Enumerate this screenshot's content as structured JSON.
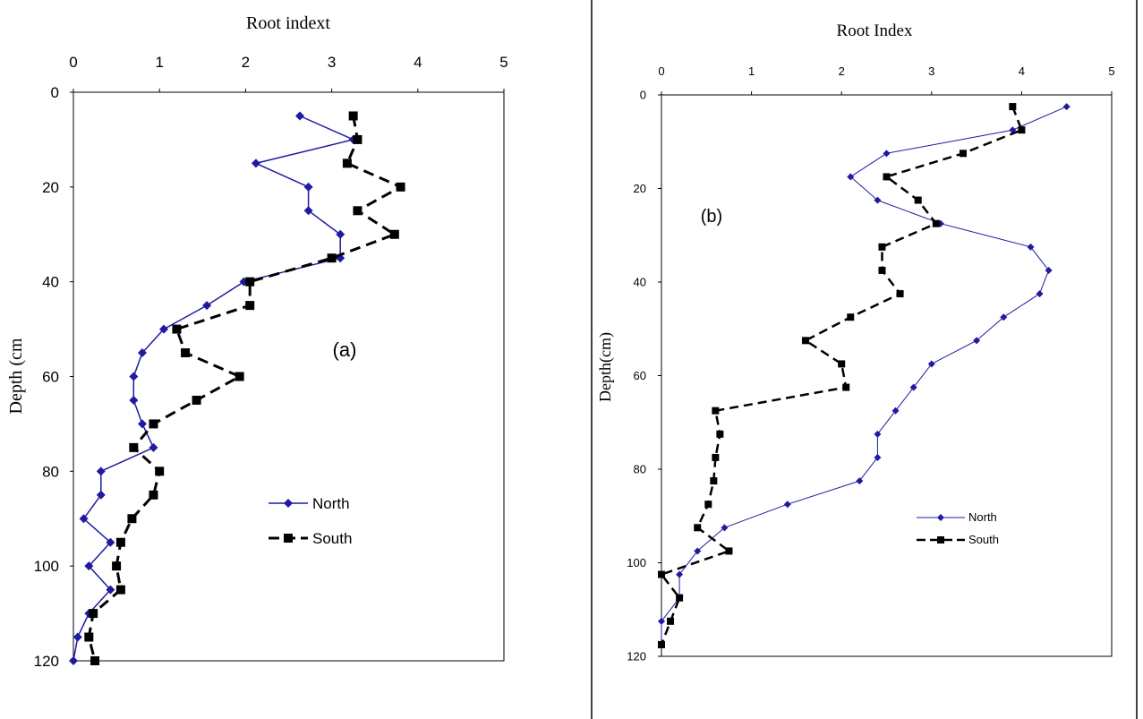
{
  "colors": {
    "north": "#1f1aa0",
    "south": "#000000",
    "axis": "#000000"
  },
  "chart_data": [
    {
      "type": "line",
      "panel_label": "(a)",
      "xlabel": "Root indext",
      "ylabel": "Depth (cm",
      "xlim": [
        0,
        5
      ],
      "ylim": [
        0,
        120
      ],
      "x_ticks": [
        "0",
        "1",
        "2",
        "3",
        "4",
        "5"
      ],
      "y_ticks": [
        "0",
        "20",
        "40",
        "60",
        "80",
        "100",
        "120"
      ],
      "series": [
        {
          "name": "North",
          "marker": "diamond-icon",
          "line_style": "solid",
          "x": [
            2.63,
            3.25,
            2.12,
            2.73,
            2.73,
            3.1,
            3.1,
            1.98,
            1.55,
            1.05,
            0.8,
            0.7,
            0.7,
            0.8,
            0.93,
            0.32,
            0.32,
            0.12,
            0.43,
            0.18,
            0.43,
            0.18,
            0.05,
            0.0
          ],
          "y": [
            5,
            10,
            15,
            20,
            25,
            30,
            35,
            40,
            45,
            50,
            55,
            60,
            65,
            70,
            75,
            80,
            85,
            90,
            95,
            100,
            105,
            110,
            115,
            120
          ]
        },
        {
          "name": "South",
          "marker": "square-icon",
          "line_style": "dashed",
          "x": [
            3.25,
            3.3,
            3.18,
            3.8,
            3.3,
            3.73,
            3.0,
            2.05,
            2.05,
            1.2,
            1.3,
            1.93,
            1.43,
            0.93,
            0.7,
            1.0,
            0.93,
            0.68,
            0.55,
            0.5,
            0.55,
            0.23,
            0.18,
            0.25
          ],
          "y": [
            5,
            10,
            15,
            20,
            25,
            30,
            35,
            40,
            45,
            50,
            55,
            60,
            65,
            70,
            75,
            80,
            85,
            90,
            95,
            100,
            105,
            110,
            115,
            120
          ]
        }
      ]
    },
    {
      "type": "line",
      "panel_label": "(b)",
      "xlabel": "Root Index",
      "ylabel": "Depth(cm)",
      "xlim": [
        0,
        5
      ],
      "ylim": [
        0,
        120
      ],
      "x_ticks": [
        "0",
        "1",
        "2",
        "3",
        "4",
        "5"
      ],
      "y_ticks": [
        "0",
        "20",
        "40",
        "60",
        "80",
        "100",
        "120"
      ],
      "series": [
        {
          "name": "North",
          "marker": "diamond-icon",
          "line_style": "solid",
          "x": [
            4.5,
            3.9,
            2.5,
            2.1,
            2.4,
            3.1,
            4.1,
            4.3,
            4.2,
            3.8,
            3.5,
            3.0,
            2.8,
            2.6,
            2.4,
            2.4,
            2.2,
            1.4,
            0.7,
            0.4,
            0.2,
            0.2,
            0.0,
            0.0
          ],
          "y": [
            2.5,
            7.5,
            12.5,
            17.5,
            22.5,
            27.5,
            32.5,
            37.5,
            42.5,
            47.5,
            52.5,
            57.5,
            62.5,
            67.5,
            72.5,
            77.5,
            82.5,
            87.5,
            92.5,
            97.5,
            102.5,
            107.5,
            112.5,
            117.5
          ]
        },
        {
          "name": "South",
          "marker": "square-icon",
          "line_style": "dashed",
          "x": [
            3.9,
            4.0,
            3.35,
            2.5,
            2.85,
            3.05,
            2.45,
            2.45,
            2.65,
            2.1,
            1.6,
            2.0,
            2.05,
            0.6,
            0.65,
            0.6,
            0.58,
            0.52,
            0.4,
            0.75,
            0.0,
            0.2,
            0.1,
            0.0
          ],
          "y": [
            2.5,
            7.5,
            12.5,
            17.5,
            22.5,
            27.5,
            32.5,
            37.5,
            42.5,
            47.5,
            52.5,
            57.5,
            62.5,
            67.5,
            72.5,
            77.5,
            82.5,
            87.5,
            92.5,
            97.5,
            102.5,
            107.5,
            112.5,
            117.5
          ]
        }
      ]
    }
  ]
}
